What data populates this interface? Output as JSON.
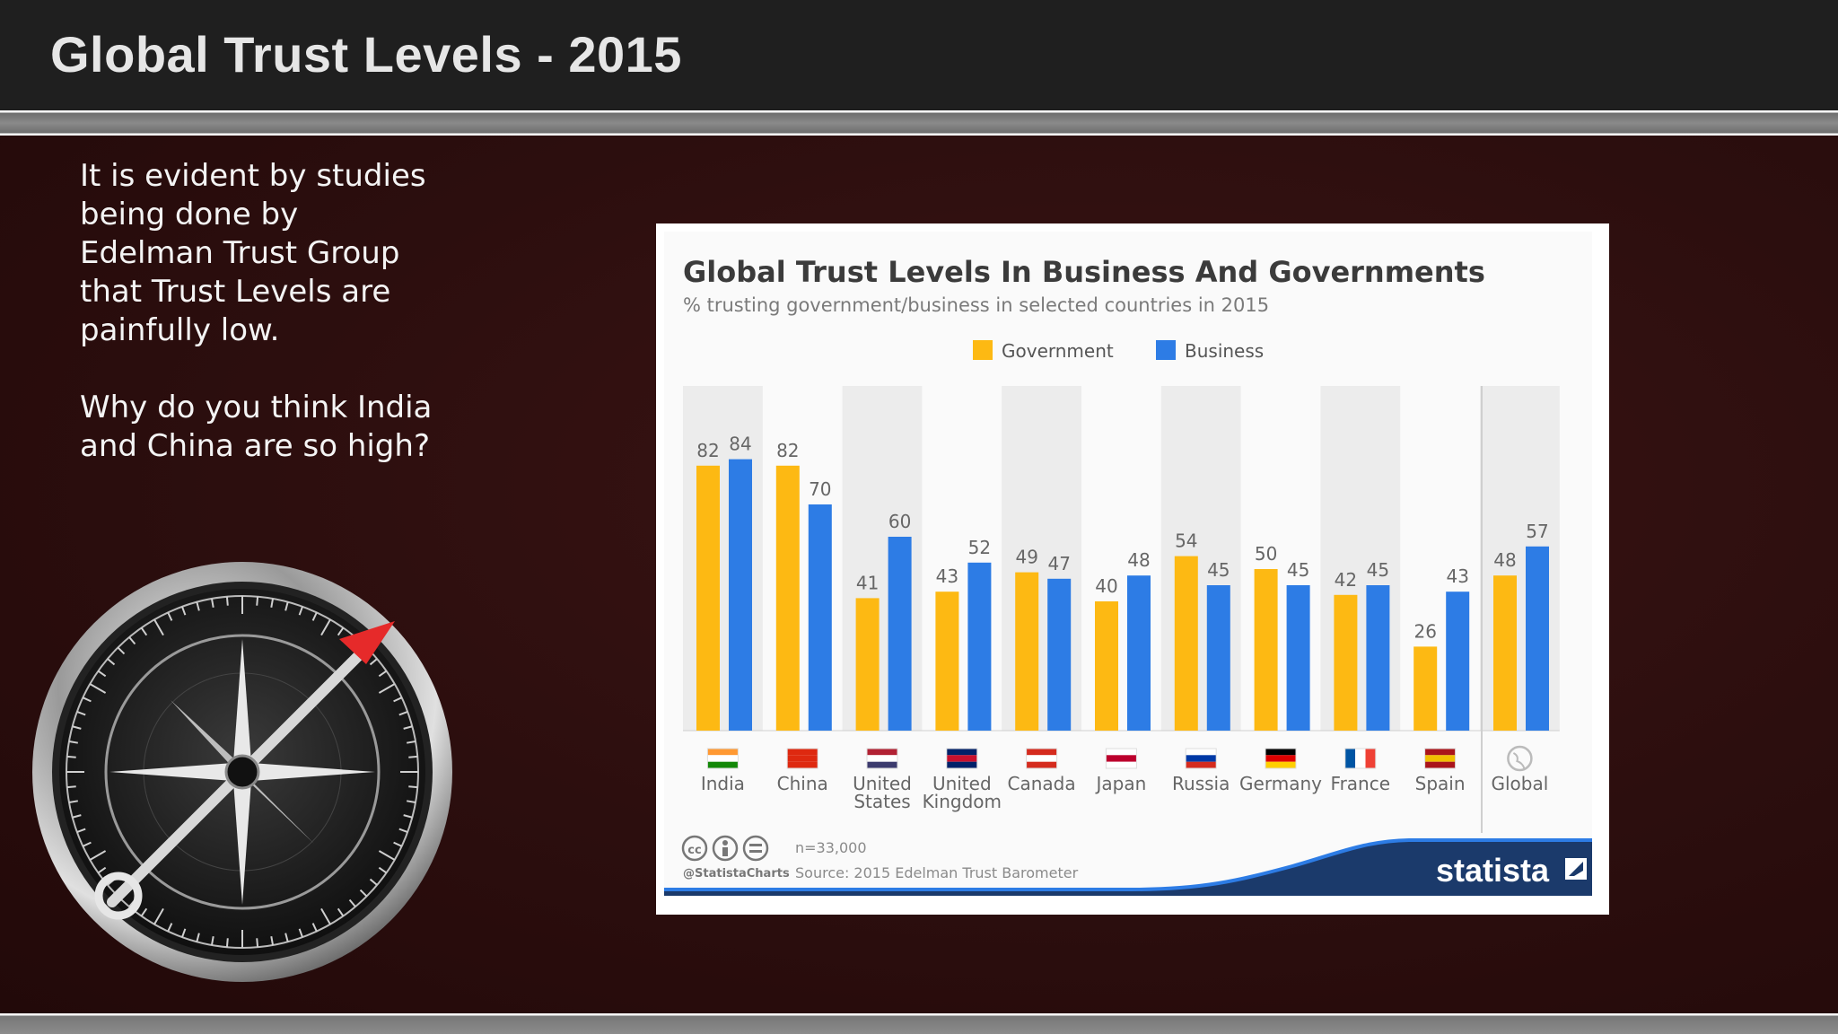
{
  "slide": {
    "title": "Global Trust Levels - 2015",
    "paragraphs": [
      "It is evident by studies being done by Edelman Trust Group that Trust Levels are painfully low.",
      "Why do you think India and China are so high?"
    ]
  },
  "chart_data": {
    "type": "bar",
    "title": "Global Trust Levels In Business And Governments",
    "subtitle": "% trusting government/business in selected countries in 2015",
    "categories": [
      [
        "India"
      ],
      [
        "China"
      ],
      [
        "United",
        "States"
      ],
      [
        "United",
        "Kingdom"
      ],
      [
        "Canada"
      ],
      [
        "Japan"
      ],
      [
        "Russia"
      ],
      [
        "Germany"
      ],
      [
        "France"
      ],
      [
        "Spain"
      ],
      [
        "Global"
      ]
    ],
    "series": [
      {
        "name": "Government",
        "color": "#FDB913",
        "values": [
          82,
          82,
          41,
          43,
          49,
          40,
          54,
          50,
          42,
          26,
          48
        ]
      },
      {
        "name": "Business",
        "color": "#2D7CE5",
        "values": [
          84,
          70,
          60,
          52,
          47,
          48,
          45,
          45,
          45,
          43,
          57
        ]
      }
    ],
    "ylim": [
      0,
      100
    ],
    "xlabel": "",
    "ylabel": "",
    "legend": "top-center",
    "footer": {
      "sample": "n=33,000",
      "source": "Source: 2015 Edelman Trust Barometer",
      "handle": "@StatistaCharts",
      "brand": "statista"
    }
  }
}
